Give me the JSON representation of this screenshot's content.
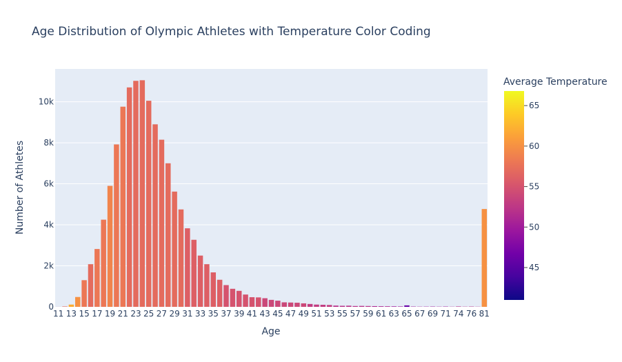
{
  "chart_data": {
    "type": "bar",
    "title": "Age Distribution of Olympic Athletes with Temperature Color Coding",
    "xlabel": "Age",
    "ylabel": "Number of Athletes",
    "ylim": [
      0,
      11600
    ],
    "yticks": [
      0,
      2000,
      4000,
      6000,
      8000,
      10000
    ],
    "ytick_labels": [
      "0",
      "2k",
      "4k",
      "6k",
      "8k",
      "10k"
    ],
    "xtick_labels": [
      "11",
      "13",
      "15",
      "17",
      "19",
      "21",
      "23",
      "25",
      "27",
      "29",
      "31",
      "33",
      "35",
      "37",
      "39",
      "41",
      "43",
      "45",
      "47",
      "49",
      "51",
      "53",
      "55",
      "57",
      "59",
      "61",
      "63",
      "65",
      "67",
      "69",
      "71",
      "74",
      "76",
      "81"
    ],
    "categories": [
      "11",
      "12",
      "13",
      "14",
      "15",
      "16",
      "17",
      "18",
      "19",
      "20",
      "21",
      "22",
      "23",
      "24",
      "25",
      "26",
      "27",
      "28",
      "29",
      "30",
      "31",
      "32",
      "33",
      "34",
      "35",
      "36",
      "37",
      "38",
      "39",
      "40",
      "41",
      "42",
      "43",
      "44",
      "45",
      "46",
      "47",
      "48",
      "49",
      "50",
      "51",
      "52",
      "53",
      "54",
      "55",
      "56",
      "57",
      "58",
      "59",
      "60",
      "61",
      "62",
      "63",
      "64",
      "65",
      "66",
      "67",
      "68",
      "69",
      "70",
      "71",
      "72",
      "74",
      "75",
      "76",
      "80",
      "81"
    ],
    "values": [
      2,
      20,
      110,
      480,
      1300,
      2080,
      2820,
      4250,
      5900,
      7920,
      9760,
      10700,
      11020,
      11050,
      10050,
      8900,
      8150,
      7000,
      5620,
      4750,
      3830,
      3270,
      2500,
      2080,
      1680,
      1320,
      1060,
      880,
      780,
      600,
      470,
      460,
      420,
      340,
      300,
      220,
      210,
      200,
      170,
      140,
      110,
      100,
      90,
      60,
      50,
      55,
      40,
      45,
      40,
      35,
      30,
      28,
      25,
      20,
      70,
      15,
      10,
      12,
      15,
      10,
      15,
      8,
      20,
      10,
      15,
      8,
      4770
    ],
    "temperatures": [
      55,
      57,
      62,
      60,
      58,
      57,
      58,
      58,
      59,
      58,
      58,
      57,
      57,
      57,
      57,
      57,
      57,
      57,
      57,
      57,
      56,
      56,
      56,
      56,
      56,
      56,
      55,
      55,
      55,
      55,
      55,
      55,
      54,
      54,
      54,
      54,
      54,
      54,
      54,
      53,
      53,
      53,
      53,
      52,
      52,
      52,
      52,
      52,
      52,
      51,
      51,
      51,
      50,
      50,
      46,
      50,
      50,
      50,
      50,
      50,
      50,
      51,
      52,
      52,
      52,
      52,
      60
    ],
    "colorbar": {
      "title": "Average Temperature",
      "range": [
        41,
        66.8
      ],
      "ticks": [
        45,
        50,
        55,
        60,
        65
      ],
      "tick_labels": [
        "45",
        "50",
        "55",
        "60",
        "65"
      ],
      "colorscale": [
        "#0d0887",
        "#46039f",
        "#7201a8",
        "#9c179e",
        "#bd3786",
        "#d8576b",
        "#ed7953",
        "#fb9f3a",
        "#fdca26",
        "#f0f921"
      ]
    },
    "plot_background": "#e5ecf6",
    "grid": true
  }
}
